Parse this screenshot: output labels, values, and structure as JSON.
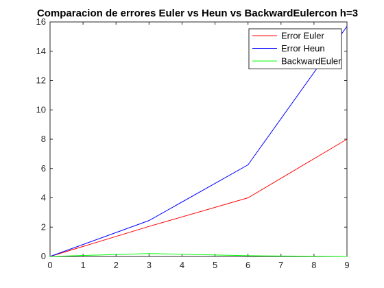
{
  "chart_data": {
    "type": "line",
    "title": "Comparacion de errores Euler vs Heun vs BackwardEulercon h=3",
    "xlabel": "",
    "ylabel": "",
    "xlim": [
      0,
      9
    ],
    "ylim": [
      0,
      16
    ],
    "xticks": [
      0,
      1,
      2,
      3,
      4,
      5,
      6,
      7,
      8,
      9
    ],
    "yticks": [
      0,
      2,
      4,
      6,
      8,
      10,
      12,
      14,
      16
    ],
    "grid": false,
    "legend_position": "top-right",
    "series": [
      {
        "name": "Error Euler",
        "color": "#ff0000",
        "x": [
          0,
          3,
          6,
          9
        ],
        "y": [
          0,
          2.05,
          4.0,
          8.0
        ]
      },
      {
        "name": "Error Heun",
        "color": "#0000ff",
        "x": [
          0,
          3,
          6,
          9
        ],
        "y": [
          0,
          2.45,
          6.25,
          15.7
        ]
      },
      {
        "name": "BackwardEuler",
        "color": "#00ff00",
        "x": [
          0,
          3,
          6,
          9
        ],
        "y": [
          0,
          0.2,
          0.05,
          0.0
        ]
      }
    ]
  }
}
